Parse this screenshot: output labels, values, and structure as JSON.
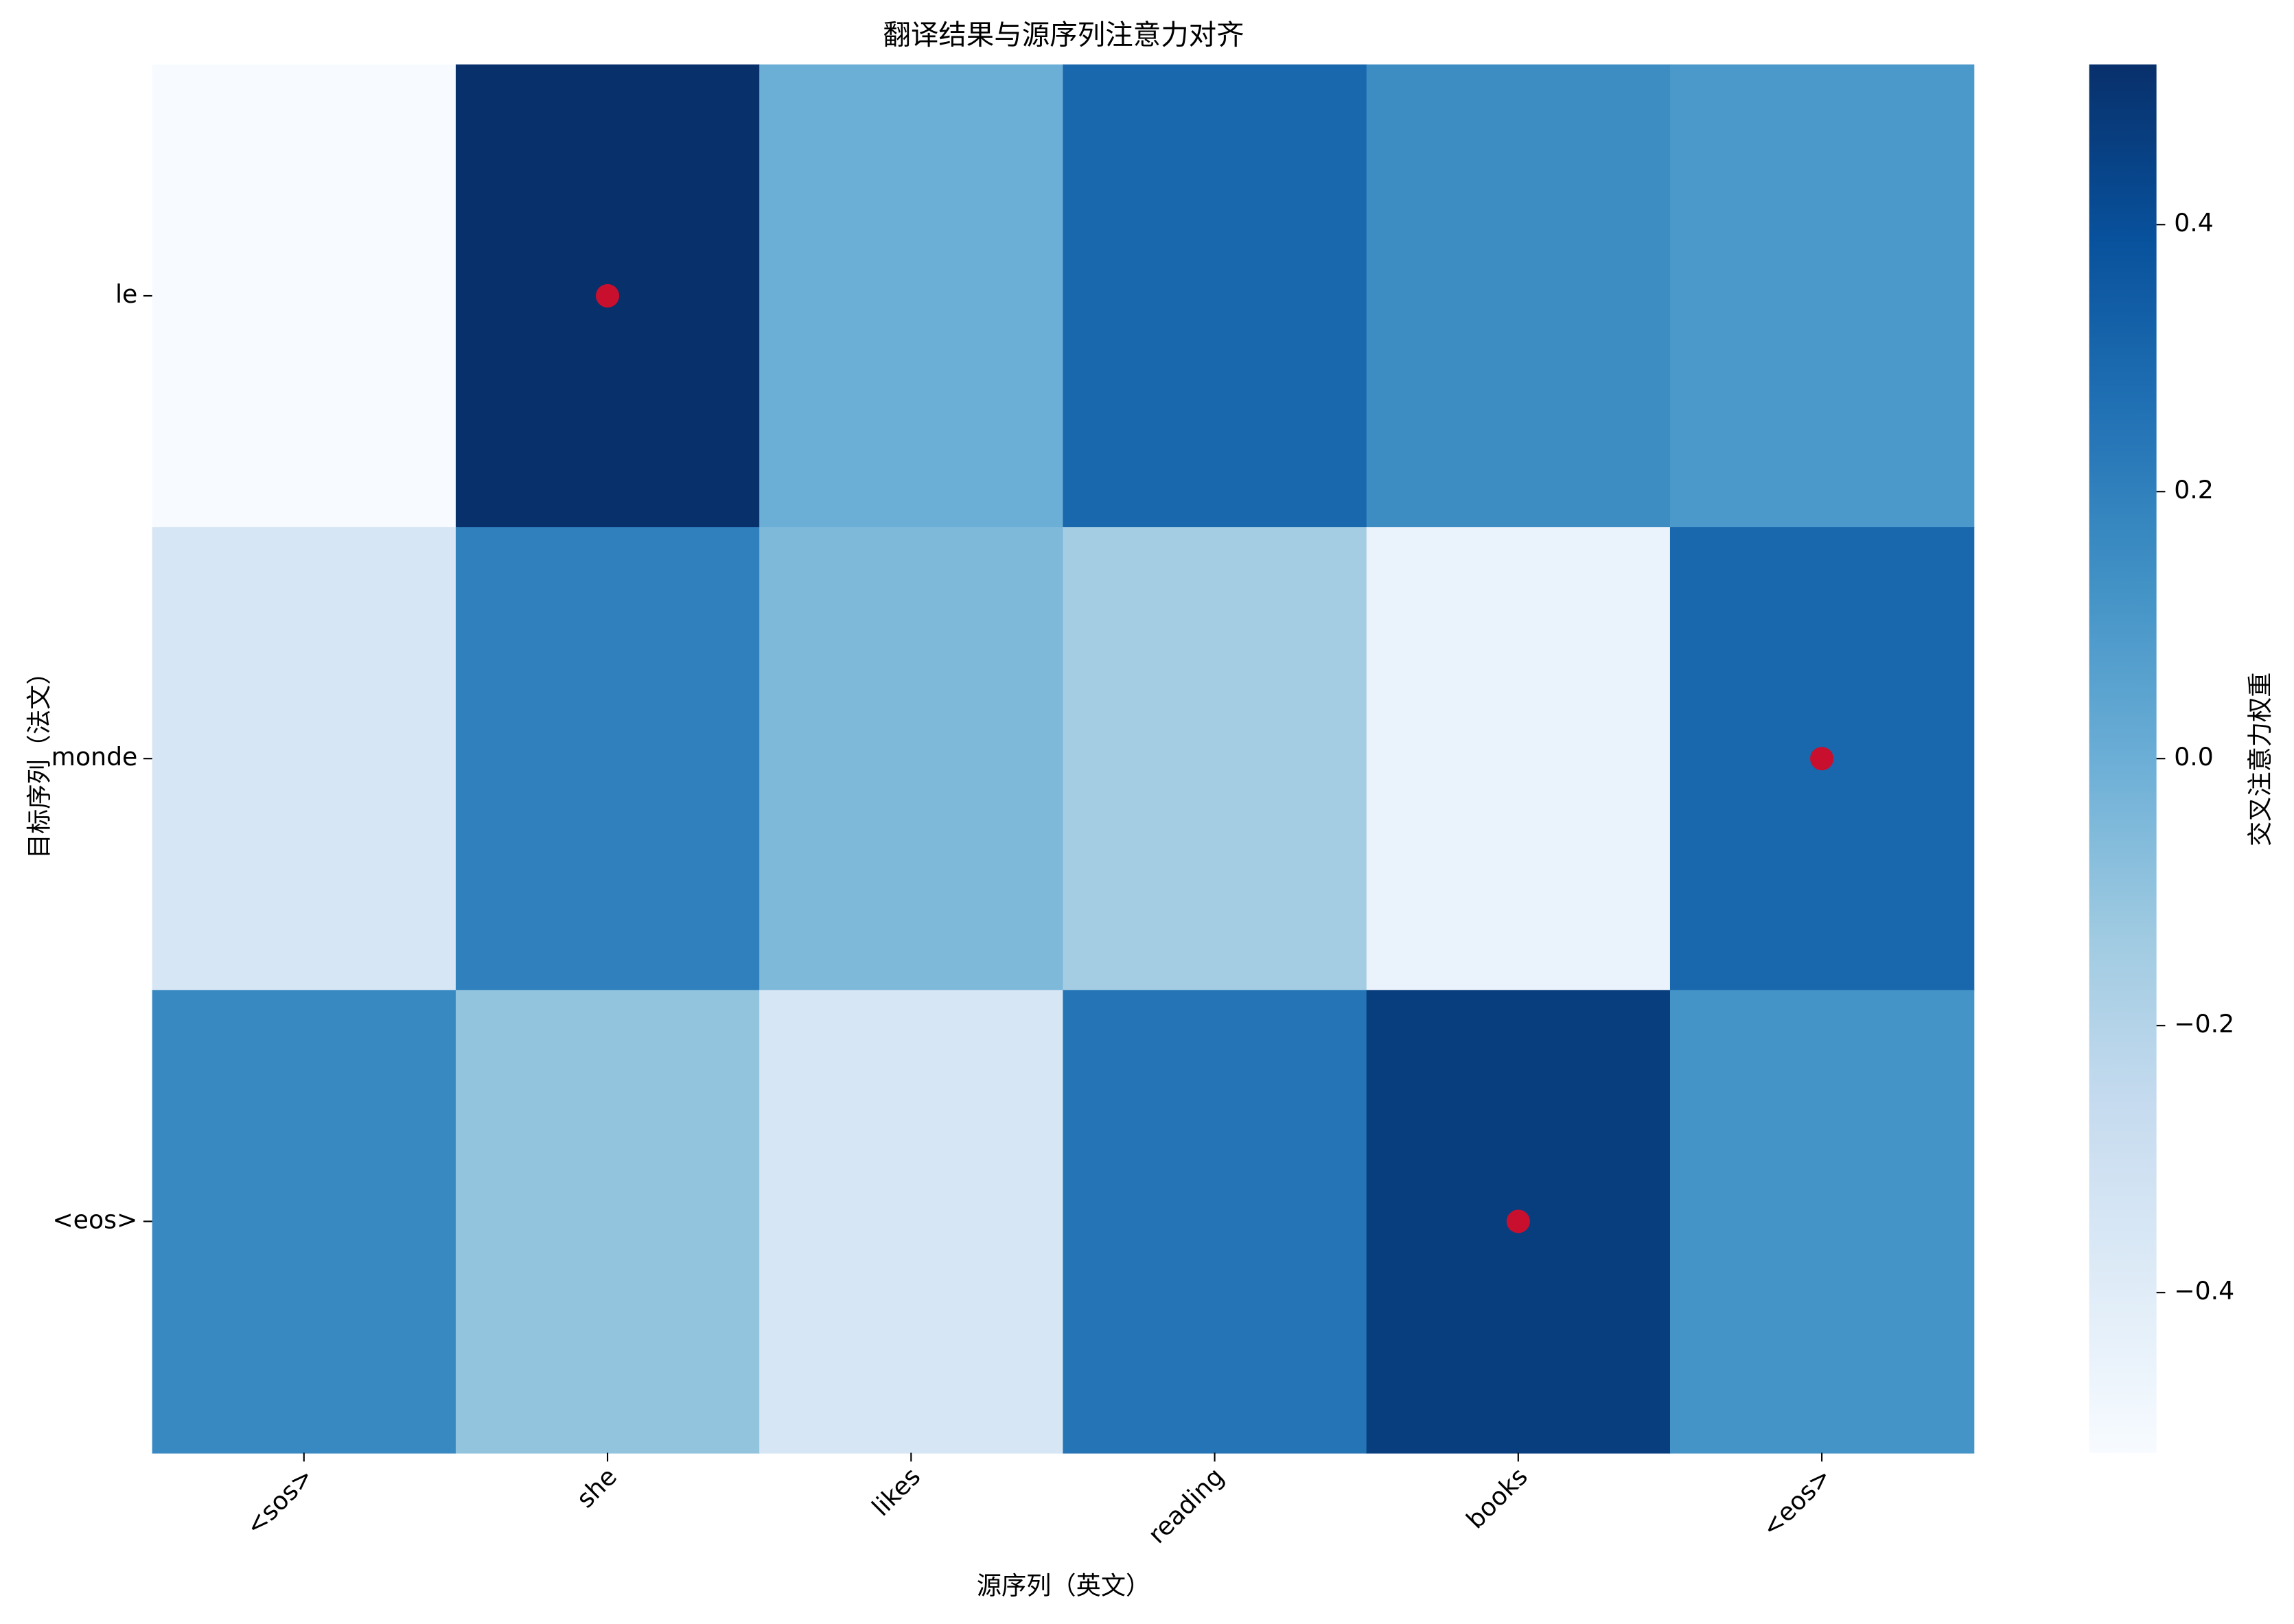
{
  "chart_data": {
    "type": "heatmap",
    "title": "翻译结果与源序列注意力对齐",
    "x_label": "源序列（英文）",
    "y_label": "目标序列（法文）",
    "x_categories": [
      "<sos>",
      "she",
      "likes",
      "reading",
      "books",
      "<eos>"
    ],
    "y_categories": [
      "le",
      "monde",
      "<eos>"
    ],
    "values": [
      [
        -0.52,
        0.52,
        0.0,
        0.3,
        0.15,
        0.1
      ],
      [
        -0.35,
        0.2,
        -0.05,
        -0.15,
        -0.45,
        0.3
      ],
      [
        0.17,
        -0.1,
        -0.35,
        0.25,
        0.47,
        0.12
      ]
    ],
    "colormap": "Blues",
    "highlight_row_max": true,
    "highlight_color": "#c8102e",
    "colorbar": {
      "label": "交叉注意力权重",
      "lim": [
        -0.52,
        0.52
      ],
      "ticks": [
        {
          "value": -0.4,
          "label": "−0.4"
        },
        {
          "value": -0.2,
          "label": "−0.2"
        },
        {
          "value": 0,
          "label": "0.0"
        },
        0.2,
        0.4
      ]
    }
  }
}
